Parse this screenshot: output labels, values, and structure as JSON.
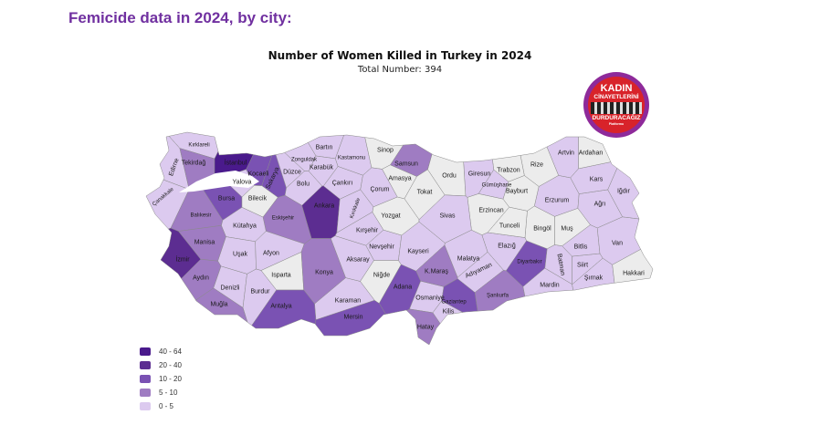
{
  "header": {
    "title": "Femicide data in 2024, by city:"
  },
  "chart_data": {
    "type": "choropleth",
    "title": "Number of Women Killed in Turkey in 2024",
    "subtitle": "Total Number: 394",
    "legend": [
      {
        "label": "40 - 64",
        "color": "#4a1a8c"
      },
      {
        "label": "20 - 40",
        "color": "#5c2d91"
      },
      {
        "label": "10 - 20",
        "color": "#7a52b3"
      },
      {
        "label": "5 - 10",
        "color": "#9f7cc2"
      },
      {
        "label": "0 - 5",
        "color": "#dccaef"
      }
    ],
    "no_data_color": "#ececec",
    "legend_placement": "bottom-left",
    "provinces": [
      {
        "name": "Kırklareli",
        "bin": "0 - 5"
      },
      {
        "name": "Edirne",
        "bin": "0 - 5"
      },
      {
        "name": "Tekirdağ",
        "bin": "5 - 10"
      },
      {
        "name": "İstanbul",
        "bin": "40 - 64"
      },
      {
        "name": "Kocaeli",
        "bin": "10 - 20"
      },
      {
        "name": "Yalova",
        "bin": "0 - 5"
      },
      {
        "name": "Sakarya",
        "bin": "10 - 20"
      },
      {
        "name": "Düzce",
        "bin": "0 - 5"
      },
      {
        "name": "Zonguldak",
        "bin": "0 - 5"
      },
      {
        "name": "Bartın",
        "bin": "0 - 5"
      },
      {
        "name": "Karabük",
        "bin": "0 - 5"
      },
      {
        "name": "Kastamonu",
        "bin": "0 - 5"
      },
      {
        "name": "Bolu",
        "bin": "0 - 5"
      },
      {
        "name": "Çankırı",
        "bin": "0 - 5"
      },
      {
        "name": "Çanakkale",
        "bin": "0 - 5"
      },
      {
        "name": "Bursa",
        "bin": "10 - 20"
      },
      {
        "name": "Bilecik",
        "bin": null
      },
      {
        "name": "Balıkesir",
        "bin": "5 - 10"
      },
      {
        "name": "Eskişehir",
        "bin": "5 - 10"
      },
      {
        "name": "Ankara",
        "bin": "20 - 40"
      },
      {
        "name": "Kırıkkale",
        "bin": "0 - 5"
      },
      {
        "name": "Kırşehir",
        "bin": "0 - 5"
      },
      {
        "name": "Kütahya",
        "bin": "0 - 5"
      },
      {
        "name": "Manisa",
        "bin": "5 - 10"
      },
      {
        "name": "İzmir",
        "bin": "20 - 40"
      },
      {
        "name": "Uşak",
        "bin": "0 - 5"
      },
      {
        "name": "Afyon",
        "bin": "0 - 5"
      },
      {
        "name": "Isparta",
        "bin": null
      },
      {
        "name": "Konya",
        "bin": "5 - 10"
      },
      {
        "name": "Aydın",
        "bin": "5 - 10"
      },
      {
        "name": "Denizli",
        "bin": "0 - 5"
      },
      {
        "name": "Burdur",
        "bin": "0 - 5"
      },
      {
        "name": "Muğla",
        "bin": "5 - 10"
      },
      {
        "name": "Antalya",
        "bin": "10 - 20"
      },
      {
        "name": "Karaman",
        "bin": "0 - 5"
      },
      {
        "name": "Mersin",
        "bin": "10 - 20"
      },
      {
        "name": "Aksaray",
        "bin": "0 - 5"
      },
      {
        "name": "Nevşehir",
        "bin": "0 - 5"
      },
      {
        "name": "Niğde",
        "bin": null
      },
      {
        "name": "Kayseri",
        "bin": "0 - 5"
      },
      {
        "name": "Adana",
        "bin": "10 - 20"
      },
      {
        "name": "Osmaniye",
        "bin": "0 - 5"
      },
      {
        "name": "K.Maraş",
        "bin": "5 - 10"
      },
      {
        "name": "Gaziantep",
        "bin": "10 - 20"
      },
      {
        "name": "Kilis",
        "bin": "0 - 5"
      },
      {
        "name": "Hatay",
        "bin": "5 - 10"
      },
      {
        "name": "Malatya",
        "bin": "0 - 5"
      },
      {
        "name": "Adıyaman",
        "bin": "0 - 5"
      },
      {
        "name": "Şanlıurfa",
        "bin": "5 - 10"
      },
      {
        "name": "Elazığ",
        "bin": "0 - 5"
      },
      {
        "name": "Diyarbakır",
        "bin": "10 - 20"
      },
      {
        "name": "Batman",
        "bin": "0 - 5"
      },
      {
        "name": "Mardin",
        "bin": "0 - 5"
      },
      {
        "name": "Siirt",
        "bin": "0 - 5"
      },
      {
        "name": "Şırnak",
        "bin": "0 - 5"
      },
      {
        "name": "Bitlis",
        "bin": "0 - 5"
      },
      {
        "name": "Van",
        "bin": "0 - 5"
      },
      {
        "name": "Hakkari",
        "bin": null
      },
      {
        "name": "Muş",
        "bin": null
      },
      {
        "name": "Bingöl",
        "bin": null
      },
      {
        "name": "Tunceli",
        "bin": null
      },
      {
        "name": "Erzincan",
        "bin": null
      },
      {
        "name": "Erzurum",
        "bin": "0 - 5"
      },
      {
        "name": "Ağrı",
        "bin": "0 - 5"
      },
      {
        "name": "Iğdır",
        "bin": "0 - 5"
      },
      {
        "name": "Kars",
        "bin": "0 - 5"
      },
      {
        "name": "Ardahan",
        "bin": null
      },
      {
        "name": "Artvin",
        "bin": "0 - 5"
      },
      {
        "name": "Rize",
        "bin": null
      },
      {
        "name": "Trabzon",
        "bin": null
      },
      {
        "name": "Bayburt",
        "bin": null
      },
      {
        "name": "Gümüşhane",
        "bin": "0 - 5"
      },
      {
        "name": "Giresun",
        "bin": "0 - 5"
      },
      {
        "name": "Ordu",
        "bin": null
      },
      {
        "name": "Samsun",
        "bin": "5 - 10"
      },
      {
        "name": "Sinop",
        "bin": null
      },
      {
        "name": "Amasya",
        "bin": null
      },
      {
        "name": "Tokat",
        "bin": null
      },
      {
        "name": "Çorum",
        "bin": "0 - 5"
      },
      {
        "name": "Yozgat",
        "bin": null
      },
      {
        "name": "Sivas",
        "bin": "0 - 5"
      }
    ]
  },
  "logo": {
    "line1": "KADIN",
    "line2": "CİNAYETLERİNİ",
    "line3": "DURDURACAĞIZ",
    "line4": "Platformu"
  }
}
